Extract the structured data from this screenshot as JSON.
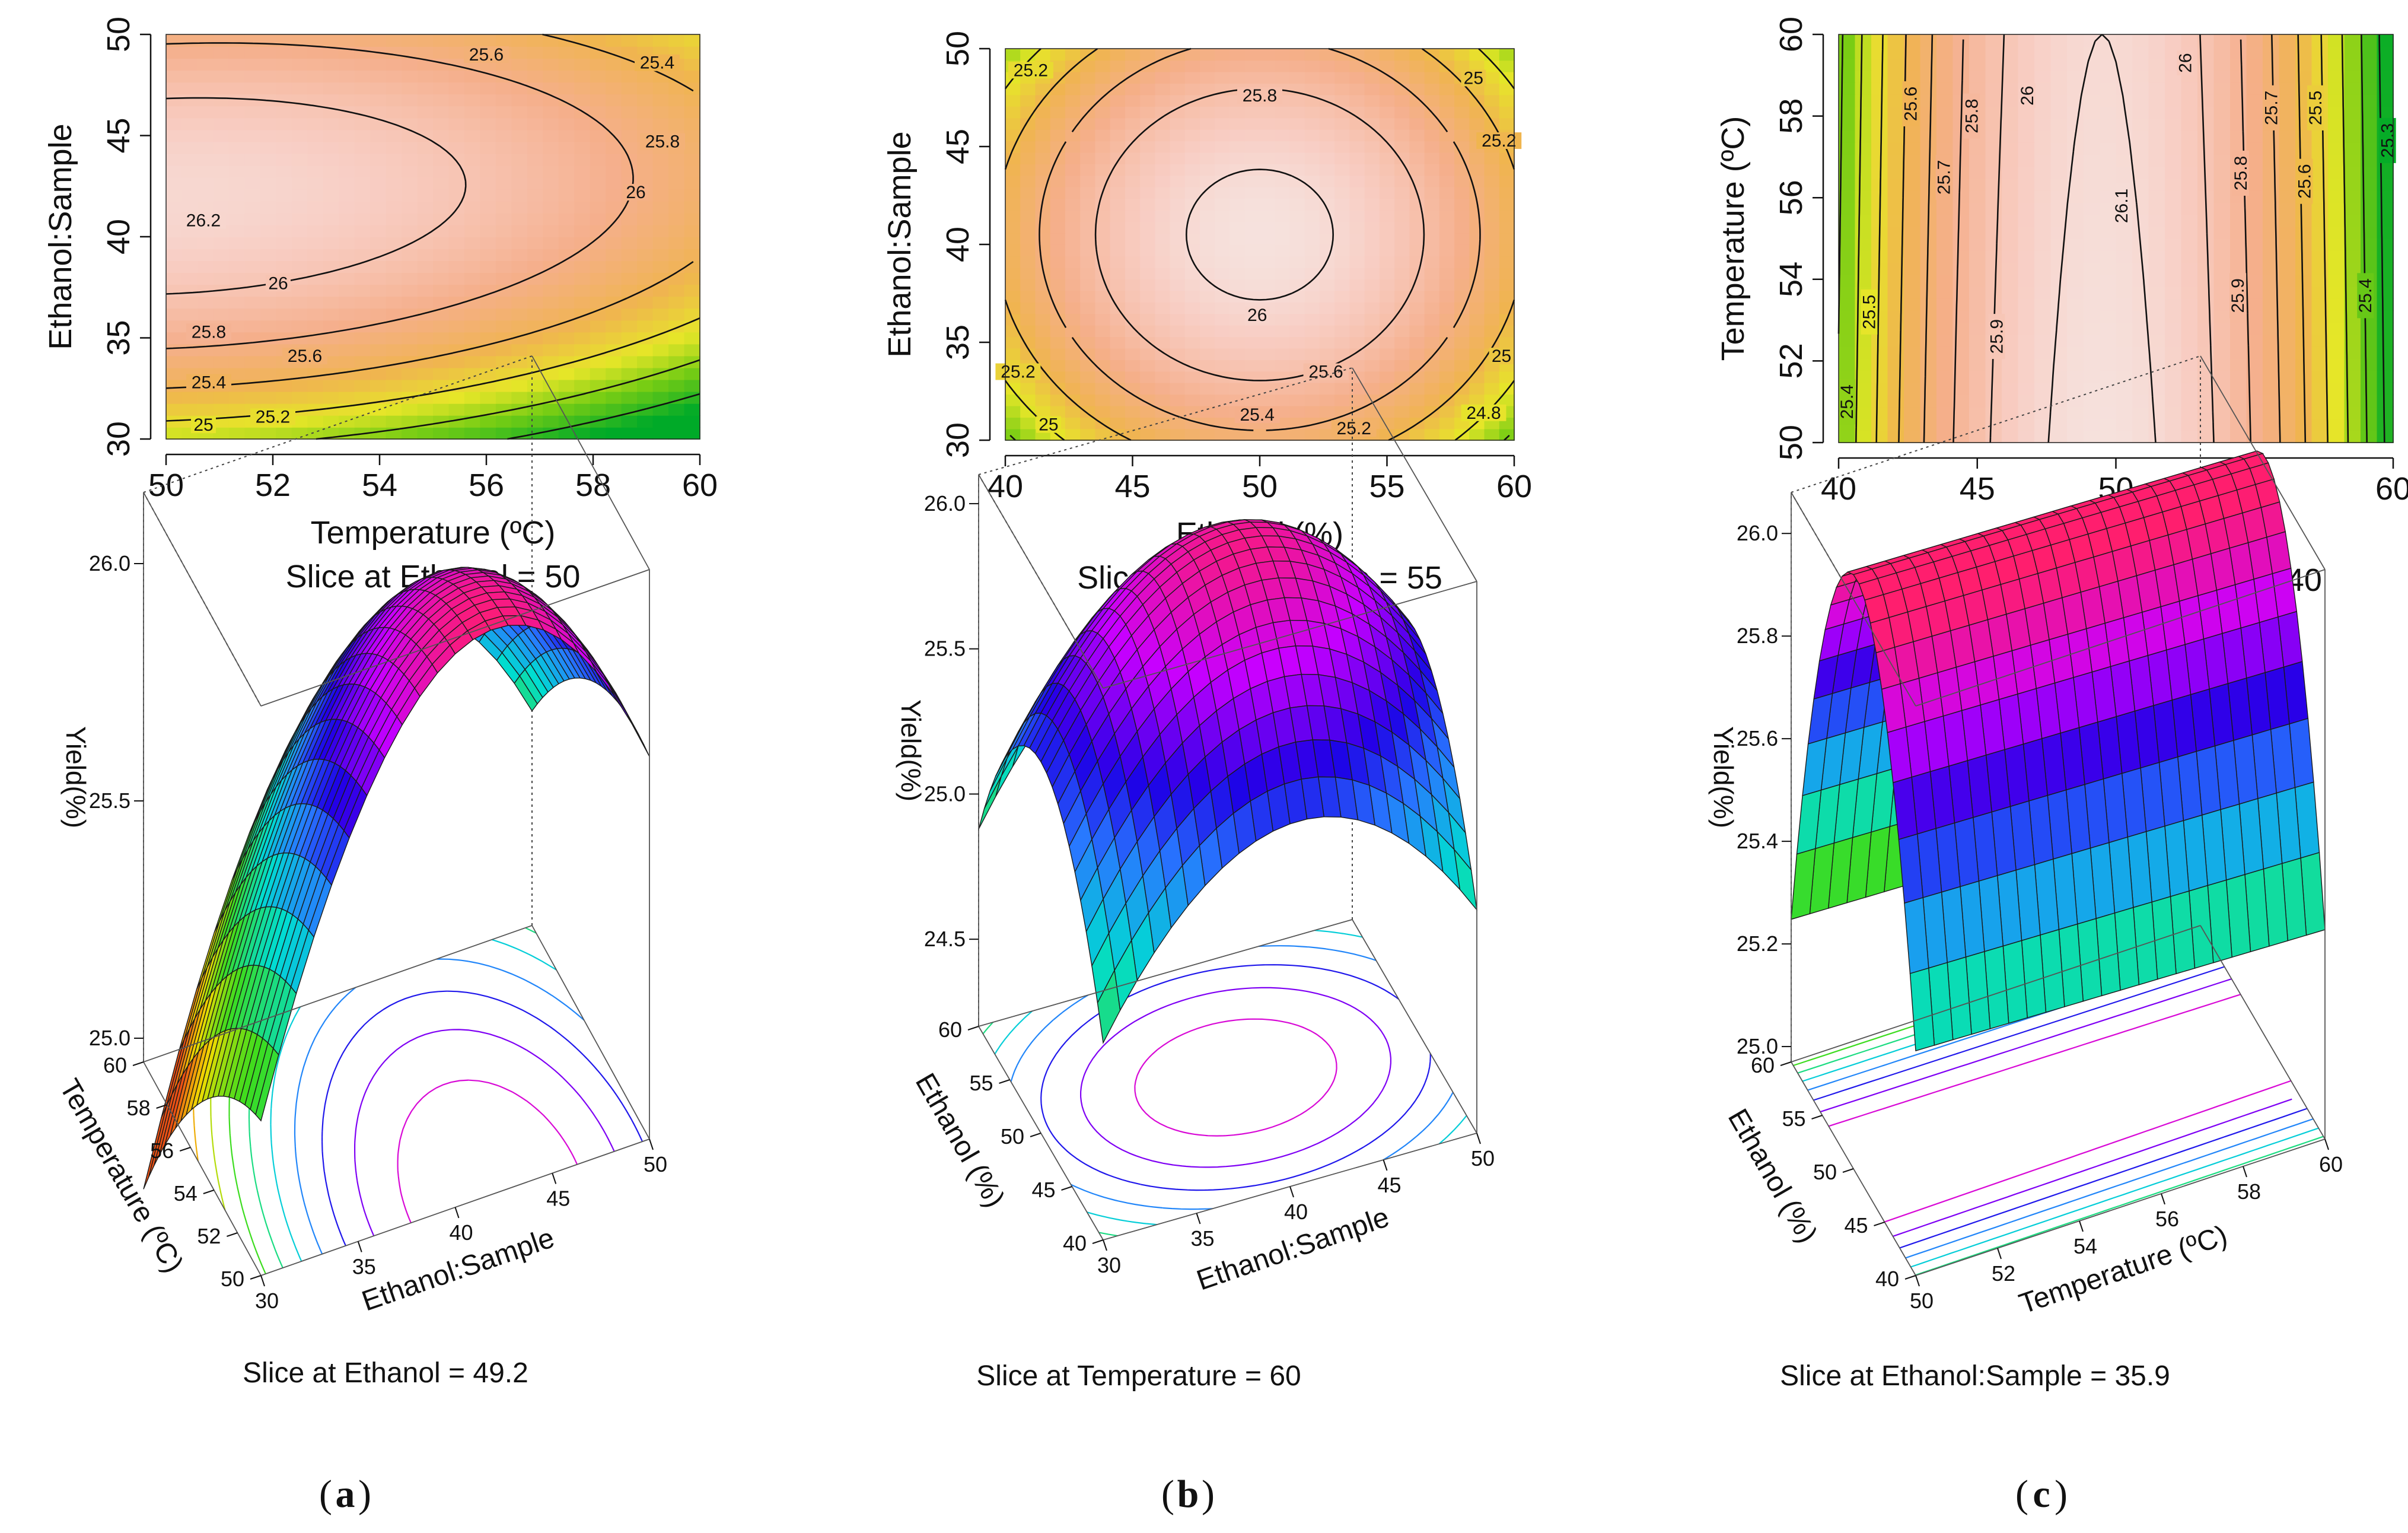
{
  "panel_labels": {
    "a_open": "(",
    "a": "a",
    "a_close": ")",
    "b_open": "(",
    "b": "b",
    "b_close": ")",
    "c_open": "(",
    "c": "c",
    "c_close": ")"
  },
  "surface_slices": {
    "a": "Slice at Ethanol = 49.2",
    "b": "Slice at Temperature = 60",
    "c": "Slice at Ethanol:Sample = 35.9"
  },
  "chart_data": [
    {
      "type": "heatmap",
      "subtitle": "Slice at Ethanol = 50",
      "xlabel": "Temperature (ºC)",
      "ylabel": "Ethanol:Sample",
      "xlim": [
        50,
        60
      ],
      "ylim": [
        30,
        50
      ],
      "xticks": [
        "50",
        "52",
        "54",
        "56",
        "58",
        "60"
      ],
      "yticks": [
        "30",
        "35",
        "40",
        "45",
        "50"
      ],
      "contour_levels": [
        25,
        25.2,
        25.4,
        25.6,
        25.8,
        26,
        26.2
      ],
      "contour_labels": [
        {
          "text": "25.6",
          "x": 56.0,
          "y": 49.0
        },
        {
          "text": "25.4",
          "x": 59.2,
          "y": 48.6
        },
        {
          "text": "25.8",
          "x": 59.3,
          "y": 44.7
        },
        {
          "text": "26",
          "x": 58.8,
          "y": 42.2
        },
        {
          "text": "26.2",
          "x": 50.7,
          "y": 40.8
        },
        {
          "text": "26",
          "x": 52.1,
          "y": 37.7
        },
        {
          "text": "25.8",
          "x": 50.8,
          "y": 35.3
        },
        {
          "text": "25.6",
          "x": 52.6,
          "y": 34.1
        },
        {
          "text": "25.4",
          "x": 50.8,
          "y": 32.8
        },
        {
          "text": "25.2",
          "x": 52.0,
          "y": 31.1
        },
        {
          "text": "25",
          "x": 50.7,
          "y": 30.7
        }
      ]
    },
    {
      "type": "heatmap",
      "subtitle": "Slice at Temperature = 55",
      "xlabel": "Ethanol (%)",
      "ylabel": "Ethanol:Sample",
      "xlim": [
        40,
        60
      ],
      "ylim": [
        30,
        50
      ],
      "xticks": [
        "40",
        "45",
        "50",
        "55",
        "60"
      ],
      "yticks": [
        "30",
        "35",
        "40",
        "45",
        "50"
      ],
      "contour_levels": [
        24.8,
        25,
        25.2,
        25.4,
        25.6,
        25.8,
        26
      ],
      "contour_labels": [
        {
          "text": "25.2",
          "x": 41.0,
          "y": 48.9
        },
        {
          "text": "25.8",
          "x": 50.0,
          "y": 47.6
        },
        {
          "text": "25",
          "x": 58.4,
          "y": 48.5
        },
        {
          "text": "25.2",
          "x": 59.4,
          "y": 45.3
        },
        {
          "text": "26",
          "x": 49.9,
          "y": 36.4
        },
        {
          "text": "25.2",
          "x": 40.5,
          "y": 33.5
        },
        {
          "text": "25.6",
          "x": 52.6,
          "y": 33.5
        },
        {
          "text": "25.4",
          "x": 49.9,
          "y": 31.3
        },
        {
          "text": "25",
          "x": 41.7,
          "y": 30.8
        },
        {
          "text": "25.2",
          "x": 53.7,
          "y": 30.6
        },
        {
          "text": "25",
          "x": 59.5,
          "y": 34.3
        },
        {
          "text": "24.8",
          "x": 58.8,
          "y": 31.4
        }
      ]
    },
    {
      "type": "heatmap",
      "subtitle": "Slice at Ethanol:Sample = 40",
      "xlabel": "Ethanol (%)",
      "ylabel": "Temperature (ºC)",
      "xlim": [
        40,
        60
      ],
      "ylim": [
        50,
        60
      ],
      "xticks": [
        "40",
        "45",
        "50",
        "55",
        "60"
      ],
      "yticks": [
        "50",
        "52",
        "54",
        "56",
        "58",
        "60"
      ],
      "contour_levels": [
        25.3,
        25.4,
        25.5,
        25.6,
        25.7,
        25.8,
        25.9,
        26,
        26.1
      ],
      "contour_labels": [
        {
          "text": "25.6",
          "x": 42.6,
          "y": 58.3
        },
        {
          "text": "25.8",
          "x": 44.8,
          "y": 58.0
        },
        {
          "text": "26",
          "x": 46.8,
          "y": 58.5
        },
        {
          "text": "26",
          "x": 52.5,
          "y": 59.3
        },
        {
          "text": "25.7",
          "x": 43.8,
          "y": 56.5
        },
        {
          "text": "25.7",
          "x": 55.6,
          "y": 58.2
        },
        {
          "text": "25.5",
          "x": 57.2,
          "y": 58.2
        },
        {
          "text": "25.3",
          "x": 59.8,
          "y": 57.4
        },
        {
          "text": "25.8",
          "x": 54.5,
          "y": 56.6
        },
        {
          "text": "25.6",
          "x": 56.8,
          "y": 56.4
        },
        {
          "text": "26.1",
          "x": 50.2,
          "y": 55.8
        },
        {
          "text": "25.9",
          "x": 54.4,
          "y": 53.6
        },
        {
          "text": "25.4",
          "x": 59.0,
          "y": 53.6
        },
        {
          "text": "25.5",
          "x": 41.1,
          "y": 53.2
        },
        {
          "text": "25.9",
          "x": 45.7,
          "y": 52.6
        },
        {
          "text": "25.4",
          "x": 40.3,
          "y": 51.0
        }
      ]
    },
    {
      "type": "surface",
      "zlabel": "Yield(%)",
      "zticks": [
        "25.0",
        "25.5",
        "26.0"
      ],
      "axis_left_label": "Temperature (ºC)",
      "axis_left_ticks": [
        "50",
        "52",
        "54",
        "56",
        "58",
        "60"
      ],
      "axis_right_label": "Ethanol:Sample",
      "axis_right_ticks": [
        "30",
        "35",
        "40",
        "45",
        "50"
      ]
    },
    {
      "type": "surface",
      "zlabel": "Yield(%)",
      "zticks": [
        "24.5",
        "25.0",
        "25.5",
        "26.0"
      ],
      "axis_left_label": "Ethanol (%)",
      "axis_left_ticks": [
        "40",
        "45",
        "50",
        "55",
        "60"
      ],
      "axis_right_label": "Ethanol:Sample",
      "axis_right_ticks": [
        "30",
        "35",
        "40",
        "45",
        "50"
      ]
    },
    {
      "type": "surface",
      "zlabel": "Yield(%)",
      "zticks": [
        "25.0",
        "25.2",
        "25.4",
        "25.6",
        "25.8",
        "26.0"
      ],
      "axis_left_label": "Ethanol (%)",
      "axis_left_ticks": [
        "40",
        "45",
        "50",
        "55",
        "60"
      ],
      "axis_right_label": "Temperature (ºC)",
      "axis_right_ticks": [
        "50",
        "52",
        "54",
        "56",
        "58",
        "60"
      ]
    }
  ]
}
